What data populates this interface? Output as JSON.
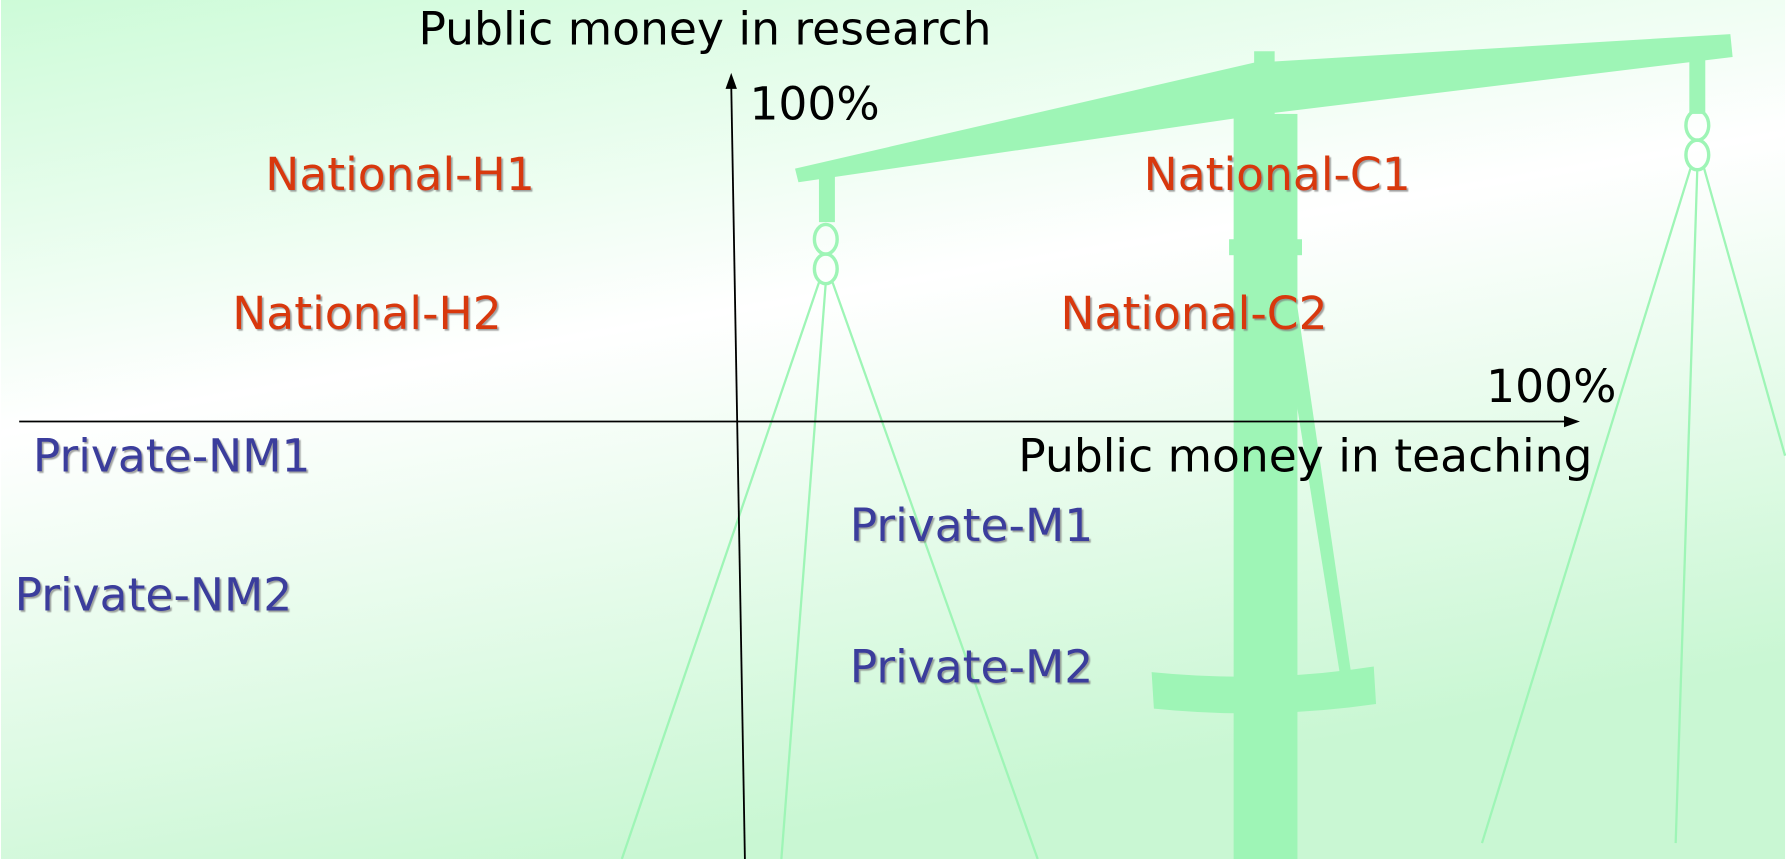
{
  "diagram": {
    "y_axis": {
      "label": "Public money in research",
      "max_label": "100%"
    },
    "x_axis": {
      "label": "Public money in teaching",
      "max_label": "100%"
    },
    "quadrant_labels": {
      "top_left": [
        "National-H1",
        "National-H2"
      ],
      "top_right": [
        "National-C1",
        "National-C2"
      ],
      "bottom_left": [
        "Private-NM1",
        "Private-NM2"
      ],
      "bottom_right": [
        "Private-M1",
        "Private-M2"
      ]
    }
  }
}
